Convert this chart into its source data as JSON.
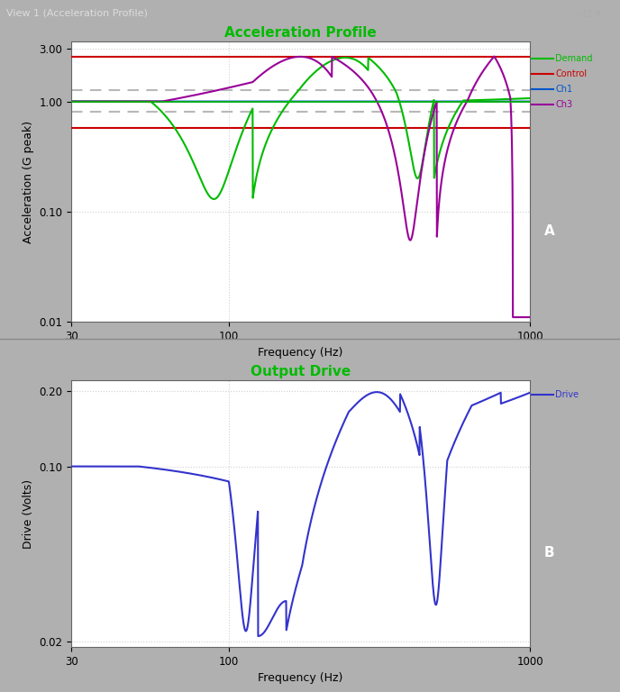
{
  "fig_bg_color": "#b0b0b0",
  "panel_bg_color": "#b0b0b0",
  "plot_bg_color": "#ffffff",
  "title_bar_text": "View 1 (Acceleration Profile)",
  "title_bar_bg": "#1c1c38",
  "top_title": "Acceleration Profile",
  "top_title_color": "#00bb00",
  "top_xlabel": "Frequency (Hz)",
  "top_ylabel": "Acceleration (G peak)",
  "demand_color": "#00bb00",
  "control_color": "#cc0000",
  "ch1_color": "#0055cc",
  "ch3_color": "#990099",
  "control_upper": 2.56,
  "control_lower": 0.58,
  "tolerance_upper_dashed": 1.26,
  "tolerance_lower_dashed": 0.8,
  "bot_title": "Output Drive",
  "bot_title_color": "#00bb00",
  "bot_xlabel": "Frequency (Hz)",
  "bot_ylabel": "Drive (Volts)",
  "drive_color": "#3333cc",
  "grid_color": "#d0d0d0",
  "grid_ls": ":"
}
